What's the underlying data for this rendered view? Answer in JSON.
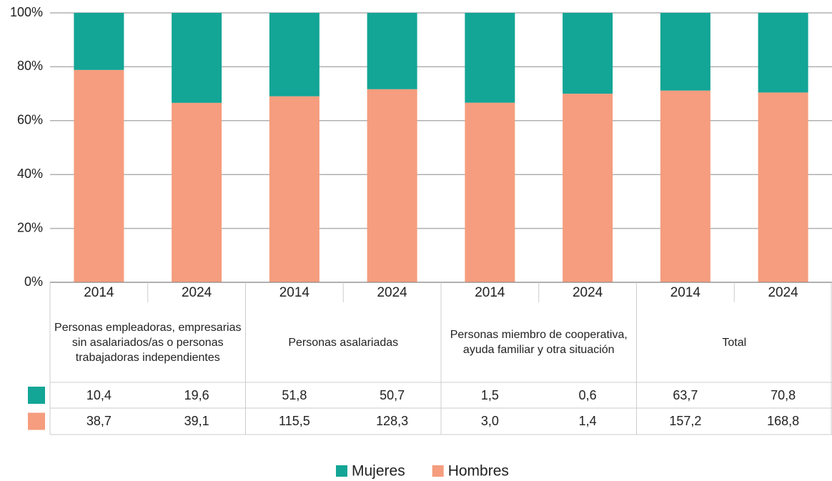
{
  "chart_data": {
    "type": "stacked_percent_bar",
    "categories": [
      "2014",
      "2024",
      "2014",
      "2024",
      "2014",
      "2024",
      "2014",
      "2024"
    ],
    "groups": [
      "Personas empleadoras, empresarias sin asalariados/as o personas trabajadoras independientes",
      "Personas asalariadas",
      "Personas  miembro de cooperativa, ayuda familiar y otra situación",
      "Total"
    ],
    "series": [
      {
        "name": "Mujeres",
        "color": "#13a596",
        "values": [
          10.4,
          19.6,
          51.8,
          50.7,
          1.5,
          0.6,
          63.7,
          70.8
        ],
        "value_labels": [
          "10,4",
          "19,6",
          "51,8",
          "50,7",
          "1,5",
          "0,6",
          "63,7",
          "70,8"
        ]
      },
      {
        "name": "Hombres",
        "color": "#f59d7e",
        "values": [
          38.7,
          39.1,
          115.5,
          128.3,
          3.0,
          1.4,
          157.2,
          168.8
        ],
        "value_labels": [
          "38,7",
          "39,1",
          "115,5",
          "128,3",
          "3,0",
          "1,4",
          "157,2",
          "168,8"
        ]
      }
    ],
    "ylim": [
      0,
      100
    ],
    "yticks": [
      {
        "value": 0,
        "label": "0%"
      },
      {
        "value": 20,
        "label": "20%"
      },
      {
        "value": 40,
        "label": "40%"
      },
      {
        "value": 60,
        "label": "60%"
      },
      {
        "value": 80,
        "label": "80%"
      },
      {
        "value": 100,
        "label": "100%"
      }
    ],
    "grid": true
  }
}
